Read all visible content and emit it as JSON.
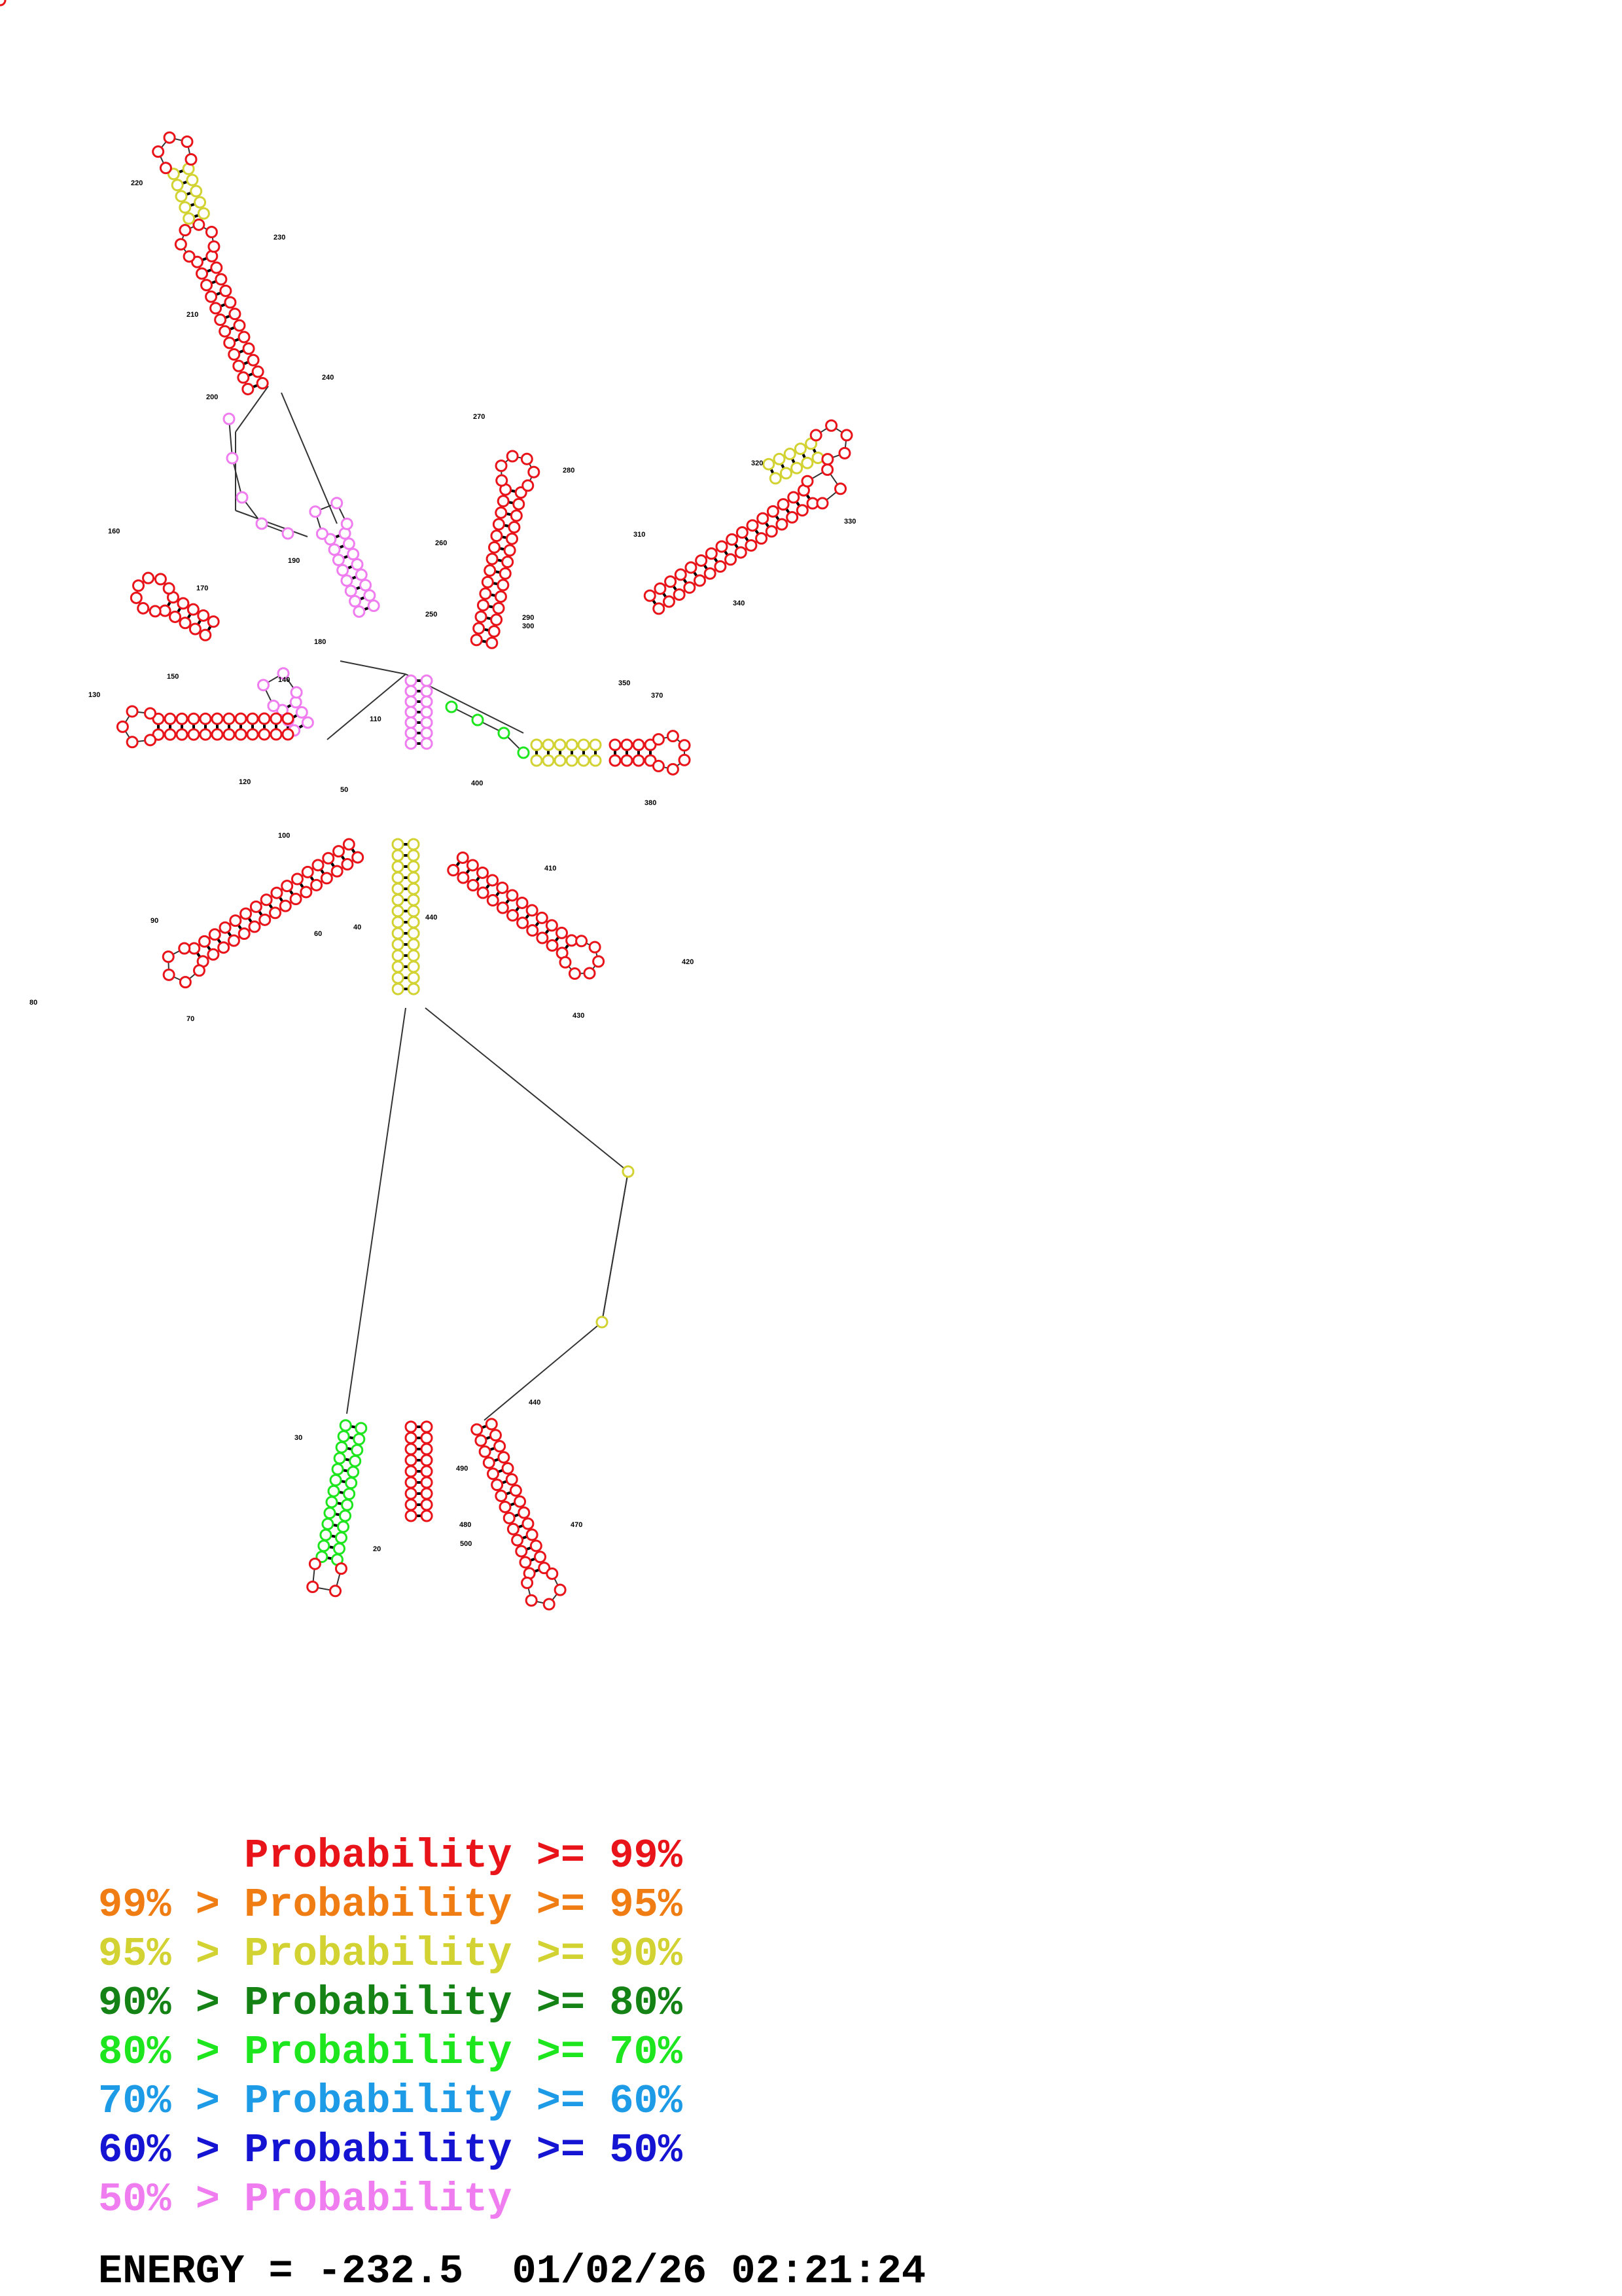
{
  "structure_labels": [
    "20",
    "30",
    "40",
    "50",
    "60",
    "70",
    "80",
    "90",
    "100",
    "110",
    "120",
    "130",
    "140",
    "150",
    "160",
    "170",
    "180",
    "190",
    "200",
    "210",
    "220",
    "230",
    "240",
    "250",
    "260",
    "270",
    "280",
    "290",
    "300",
    "310",
    "320",
    "330",
    "340",
    "350",
    "370",
    "380",
    "400",
    "410",
    "420",
    "430",
    "440",
    "440",
    "470",
    "480",
    "490",
    "500"
  ],
  "legend": [
    {
      "left": "",
      "right": "Probability >= 99%",
      "color": "#e8141a"
    },
    {
      "left": "99% > ",
      "right": "Probability >= 95%",
      "color": "#f07d14"
    },
    {
      "left": "95% > ",
      "right": "Probability >= 90%",
      "color": "#d2d232"
    },
    {
      "left": "90% > ",
      "right": "Probability >= 80%",
      "color": "#148214"
    },
    {
      "left": "80% > ",
      "right": "Probability >= 70%",
      "color": "#1ee61e"
    },
    {
      "left": "70% > ",
      "right": "Probability >= 60%",
      "color": "#1e9be6"
    },
    {
      "left": "60% > ",
      "right": "Probability >= 50%",
      "color": "#1414d2"
    },
    {
      "left": "50% > ",
      "right": "Probability",
      "color": "#f07df0"
    }
  ],
  "footer": {
    "energy_text": "ENERGY = -232.5  01/02/26 02:21:24",
    "color": "#000000"
  }
}
